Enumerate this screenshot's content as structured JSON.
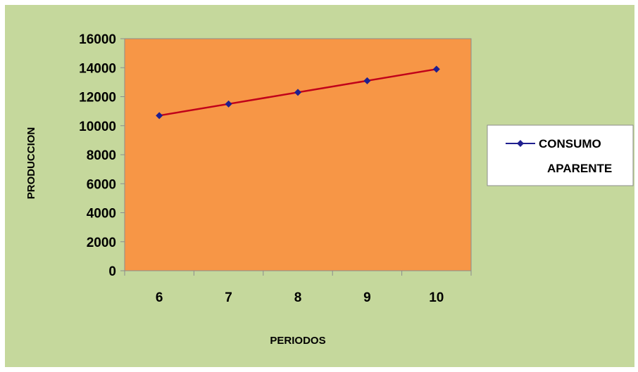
{
  "chart_data": {
    "type": "line",
    "title": "",
    "xlabel": "PERIODOS",
    "ylabel": "PRODUCCION",
    "categories": [
      "6",
      "7",
      "8",
      "9",
      "10"
    ],
    "ylim": [
      0,
      16000
    ],
    "yticks": [
      0,
      2000,
      4000,
      6000,
      8000,
      10000,
      12000,
      14000,
      16000
    ],
    "grid": false,
    "legend_position": "right",
    "series": [
      {
        "name": "CONSUMO APARENTE",
        "legend_lines": [
          "CONSUMO",
          "APARENTE"
        ],
        "values": [
          10700,
          11500,
          12300,
          13100,
          13900
        ],
        "marker_color": "#1f1f8f",
        "line_color": "#c0001a"
      }
    ],
    "colors": {
      "chart_background": "#c5d89c",
      "plot_background": "#f79646"
    }
  }
}
